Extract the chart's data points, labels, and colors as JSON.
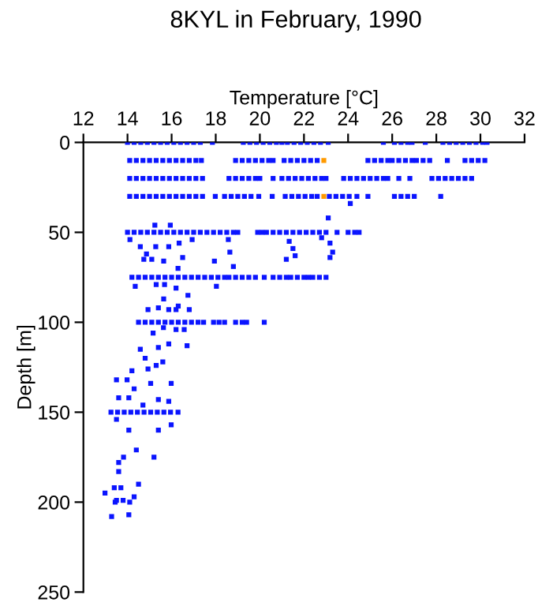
{
  "chart_data": {
    "type": "scatter",
    "title": "8KYL in February, 1990",
    "xlabel": "Temperature [°C]",
    "ylabel": "Depth [m]",
    "xlim": [
      12,
      32
    ],
    "xticks": [
      12,
      14,
      16,
      18,
      20,
      22,
      24,
      26,
      28,
      30,
      32
    ],
    "ylim": [
      250,
      0
    ],
    "yticks": [
      0,
      50,
      100,
      150,
      200,
      250
    ],
    "grid": false,
    "legend": false,
    "marker": "square",
    "series": [
      {
        "color": "#0a14ff",
        "x": [
          14.0,
          14.3,
          14.6,
          14.9,
          15.2,
          15.5,
          15.8,
          16.1,
          16.4,
          16.7,
          17.0,
          17.3,
          17.85,
          19.25,
          19.55,
          19.85,
          20.15,
          20.45,
          20.75,
          21.0,
          21.25,
          21.55,
          21.85,
          22.15,
          22.45,
          22.75,
          23.1,
          25.6,
          26.1,
          26.4,
          26.7,
          26.9,
          27.5,
          28.3,
          28.6,
          28.9,
          29.2,
          29.5,
          29.8,
          30.1,
          30.3
        ],
        "values": [
          0,
          0,
          0,
          0,
          0,
          0,
          0,
          0,
          0,
          0,
          0,
          0,
          0,
          0,
          0,
          0,
          0,
          0,
          0,
          0,
          0,
          0,
          0,
          0,
          0,
          0,
          0,
          0,
          0,
          0,
          0,
          0,
          0,
          0,
          0,
          0,
          0,
          0,
          0,
          0,
          0
        ]
      },
      {
        "color": "#0a14ff",
        "x": [
          14.1,
          14.4,
          14.7,
          15.0,
          15.3,
          15.6,
          15.9,
          16.2,
          16.5,
          16.8,
          17.1,
          17.35,
          18.9,
          19.2,
          19.5,
          19.8,
          20.1,
          20.4,
          20.6,
          21.1,
          21.4,
          21.7,
          22.0,
          22.3,
          22.6,
          24.9,
          25.2,
          25.5,
          25.8,
          26.0,
          26.3,
          26.6,
          26.9,
          27.1,
          27.4,
          27.7,
          28.5,
          29.3,
          29.6,
          29.9,
          30.2
        ],
        "values": [
          10,
          10,
          10,
          10,
          10,
          10,
          10,
          10,
          10,
          10,
          10,
          10,
          10,
          10,
          10,
          10,
          10,
          10,
          10,
          10,
          10,
          10,
          10,
          10,
          10,
          10,
          10,
          10,
          10,
          10,
          10,
          10,
          10,
          10,
          10,
          10,
          10,
          10,
          10,
          10,
          10
        ]
      },
      {
        "color": "#0a14ff",
        "x": [
          14.1,
          14.4,
          14.7,
          15.0,
          15.3,
          15.6,
          15.9,
          16.2,
          16.5,
          16.8,
          17.1,
          17.4,
          18.6,
          18.9,
          19.2,
          19.5,
          19.8,
          20.0,
          20.6,
          21.0,
          21.3,
          21.6,
          21.9,
          22.2,
          22.5,
          22.8,
          23.0,
          23.8,
          24.1,
          24.4,
          24.7,
          25.0,
          25.3,
          25.6,
          25.8,
          26.3,
          26.8,
          27.8,
          28.1,
          28.4,
          28.7,
          29.0,
          29.3,
          29.6
        ],
        "values": [
          20,
          20,
          20,
          20,
          20,
          20,
          20,
          20,
          20,
          20,
          20,
          20,
          20,
          20,
          20,
          20,
          20,
          20,
          20,
          20,
          20,
          20,
          20,
          20,
          20,
          20,
          20,
          20,
          20,
          20,
          20,
          20,
          20,
          20,
          20,
          20,
          20,
          20,
          20,
          20,
          20,
          20,
          20,
          20
        ]
      },
      {
        "color": "#0a14ff",
        "x": [
          14.1,
          14.4,
          14.7,
          15.0,
          15.3,
          15.6,
          15.9,
          16.2,
          16.5,
          16.8,
          17.1,
          17.4,
          17.98,
          18.4,
          18.7,
          19.0,
          19.3,
          19.6,
          19.95,
          20.56,
          21.15,
          21.45,
          21.75,
          22.05,
          22.35,
          22.6,
          23.15,
          23.45,
          23.75,
          24.05,
          24.4,
          24.9,
          26.1,
          26.4,
          26.7,
          27.0,
          28.2,
          24.1,
          23.1
        ],
        "values": [
          30,
          30,
          30,
          30,
          30,
          30,
          30,
          30,
          30,
          30,
          30,
          30,
          30,
          30,
          30,
          30,
          30,
          30,
          30,
          30,
          30,
          30,
          30,
          30,
          30,
          30,
          30,
          30,
          30,
          30,
          30,
          30,
          30,
          30,
          30,
          30,
          30,
          34,
          42
        ]
      },
      {
        "color": "#0a14ff",
        "x": [
          14.0,
          14.3,
          14.6,
          14.9,
          15.2,
          15.5,
          15.8,
          16.1,
          16.4,
          16.7,
          17.0,
          17.3,
          17.6,
          17.9,
          18.2,
          18.5,
          18.8,
          19.0,
          19.9,
          20.1,
          20.3,
          20.6,
          20.9,
          21.2,
          21.5,
          21.8,
          22.1,
          22.4,
          22.7,
          23.0,
          23.5,
          24.0,
          24.3,
          24.5
        ],
        "values": [
          50,
          50,
          50,
          50,
          50,
          50,
          50,
          50,
          50,
          50,
          50,
          50,
          50,
          50,
          50,
          50,
          50,
          50,
          50,
          50,
          50,
          50,
          50,
          50,
          50,
          50,
          50,
          50,
          50,
          50,
          50,
          50,
          50,
          50
        ]
      },
      {
        "color": "#0a14ff",
        "x": [
          14.2,
          14.5,
          14.8,
          15.1,
          15.4,
          15.7,
          16.0,
          16.3,
          16.6,
          16.9,
          17.2,
          17.5,
          17.8,
          18.1,
          18.4,
          18.6,
          18.9,
          19.2,
          19.5,
          19.8,
          20.2,
          20.6,
          20.9,
          21.2,
          21.4,
          21.7,
          22.0,
          22.2,
          22.4,
          22.7,
          23.0
        ],
        "values": [
          75,
          75,
          75,
          75,
          75,
          75,
          75,
          75,
          75,
          75,
          75,
          75,
          75,
          75,
          75,
          75,
          75,
          75,
          75,
          75,
          75,
          75,
          75,
          75,
          75,
          75,
          75,
          75,
          75,
          75,
          75
        ]
      },
      {
        "color": "#0a14ff",
        "x": [
          14.5,
          14.8,
          15.1,
          15.4,
          15.7,
          16.0,
          16.3,
          16.6,
          16.9,
          17.2,
          17.45,
          17.9,
          18.15,
          18.4,
          18.9,
          19.2,
          19.4,
          20.2
        ],
        "values": [
          100,
          100,
          100,
          100,
          100,
          100,
          100,
          100,
          100,
          100,
          100,
          100,
          100,
          100,
          100,
          100,
          100,
          100
        ]
      },
      {
        "color": "#0a14ff",
        "x": [
          13.25,
          13.55,
          13.85,
          14.15,
          14.45,
          14.75,
          15.05,
          15.35,
          15.65,
          15.95,
          16.29
        ],
        "values": [
          150,
          150,
          150,
          150,
          150,
          150,
          150,
          150,
          150,
          150,
          150
        ]
      },
      {
        "color": "#0a14ff",
        "x": [
          15.24,
          15.94,
          14.11,
          14.58,
          14.86,
          14.74,
          15.1,
          15.28,
          15.87,
          16.34,
          16.93,
          16.5,
          16.29,
          15.64,
          17.94,
          18.57,
          18.64,
          18.8,
          21.33,
          21.2,
          21.6,
          21.5,
          23.18,
          23.3,
          23.18,
          22.8,
          14.35,
          15.3,
          15.68,
          16.2,
          18.03,
          16.74,
          15.64,
          16.2
        ],
        "values": [
          46,
          46,
          54,
          58,
          62,
          65,
          65,
          58,
          58,
          56,
          54,
          64,
          70,
          66,
          66,
          54,
          61,
          69,
          55,
          65,
          63,
          59,
          56,
          61,
          64,
          53,
          80,
          79,
          79,
          81,
          80,
          85,
          87,
          93
        ]
      },
      {
        "color": "#0a14ff",
        "x": [
          15.4,
          15.87,
          16.3,
          16.8,
          14.93,
          15.63,
          16.2,
          15.16,
          16.57,
          14.58,
          15.4,
          15.87,
          16.7,
          14.8,
          15.6,
          15.3,
          14.93,
          14.2,
          13.5,
          13.98,
          15.05,
          15.98,
          14.3,
          13.6,
          14.06,
          15.4,
          14.7,
          15.87,
          13.5,
          15.98,
          14.06,
          15.4,
          14.4,
          15.2,
          13.82,
          13.6,
          13.6,
          14.5,
          13.4,
          13.7,
          12.98,
          14.3,
          13.5,
          13.8,
          14.1,
          13.44,
          14.06,
          13.28
        ],
        "values": [
          92,
          93,
          91,
          93,
          93,
          103,
          104,
          106,
          104,
          115,
          114,
          112,
          113,
          120,
          122,
          124,
          126,
          127,
          132,
          132,
          134,
          134,
          137,
          142,
          142,
          143,
          146,
          144,
          154,
          157,
          160,
          160,
          171,
          175,
          175,
          178,
          183,
          190,
          192,
          192,
          195,
          197,
          199,
          199,
          200,
          200,
          207,
          208
        ]
      },
      {
        "color": "#ff9a00",
        "x": [
          22.9,
          22.9
        ],
        "values": [
          10,
          30
        ]
      }
    ]
  }
}
